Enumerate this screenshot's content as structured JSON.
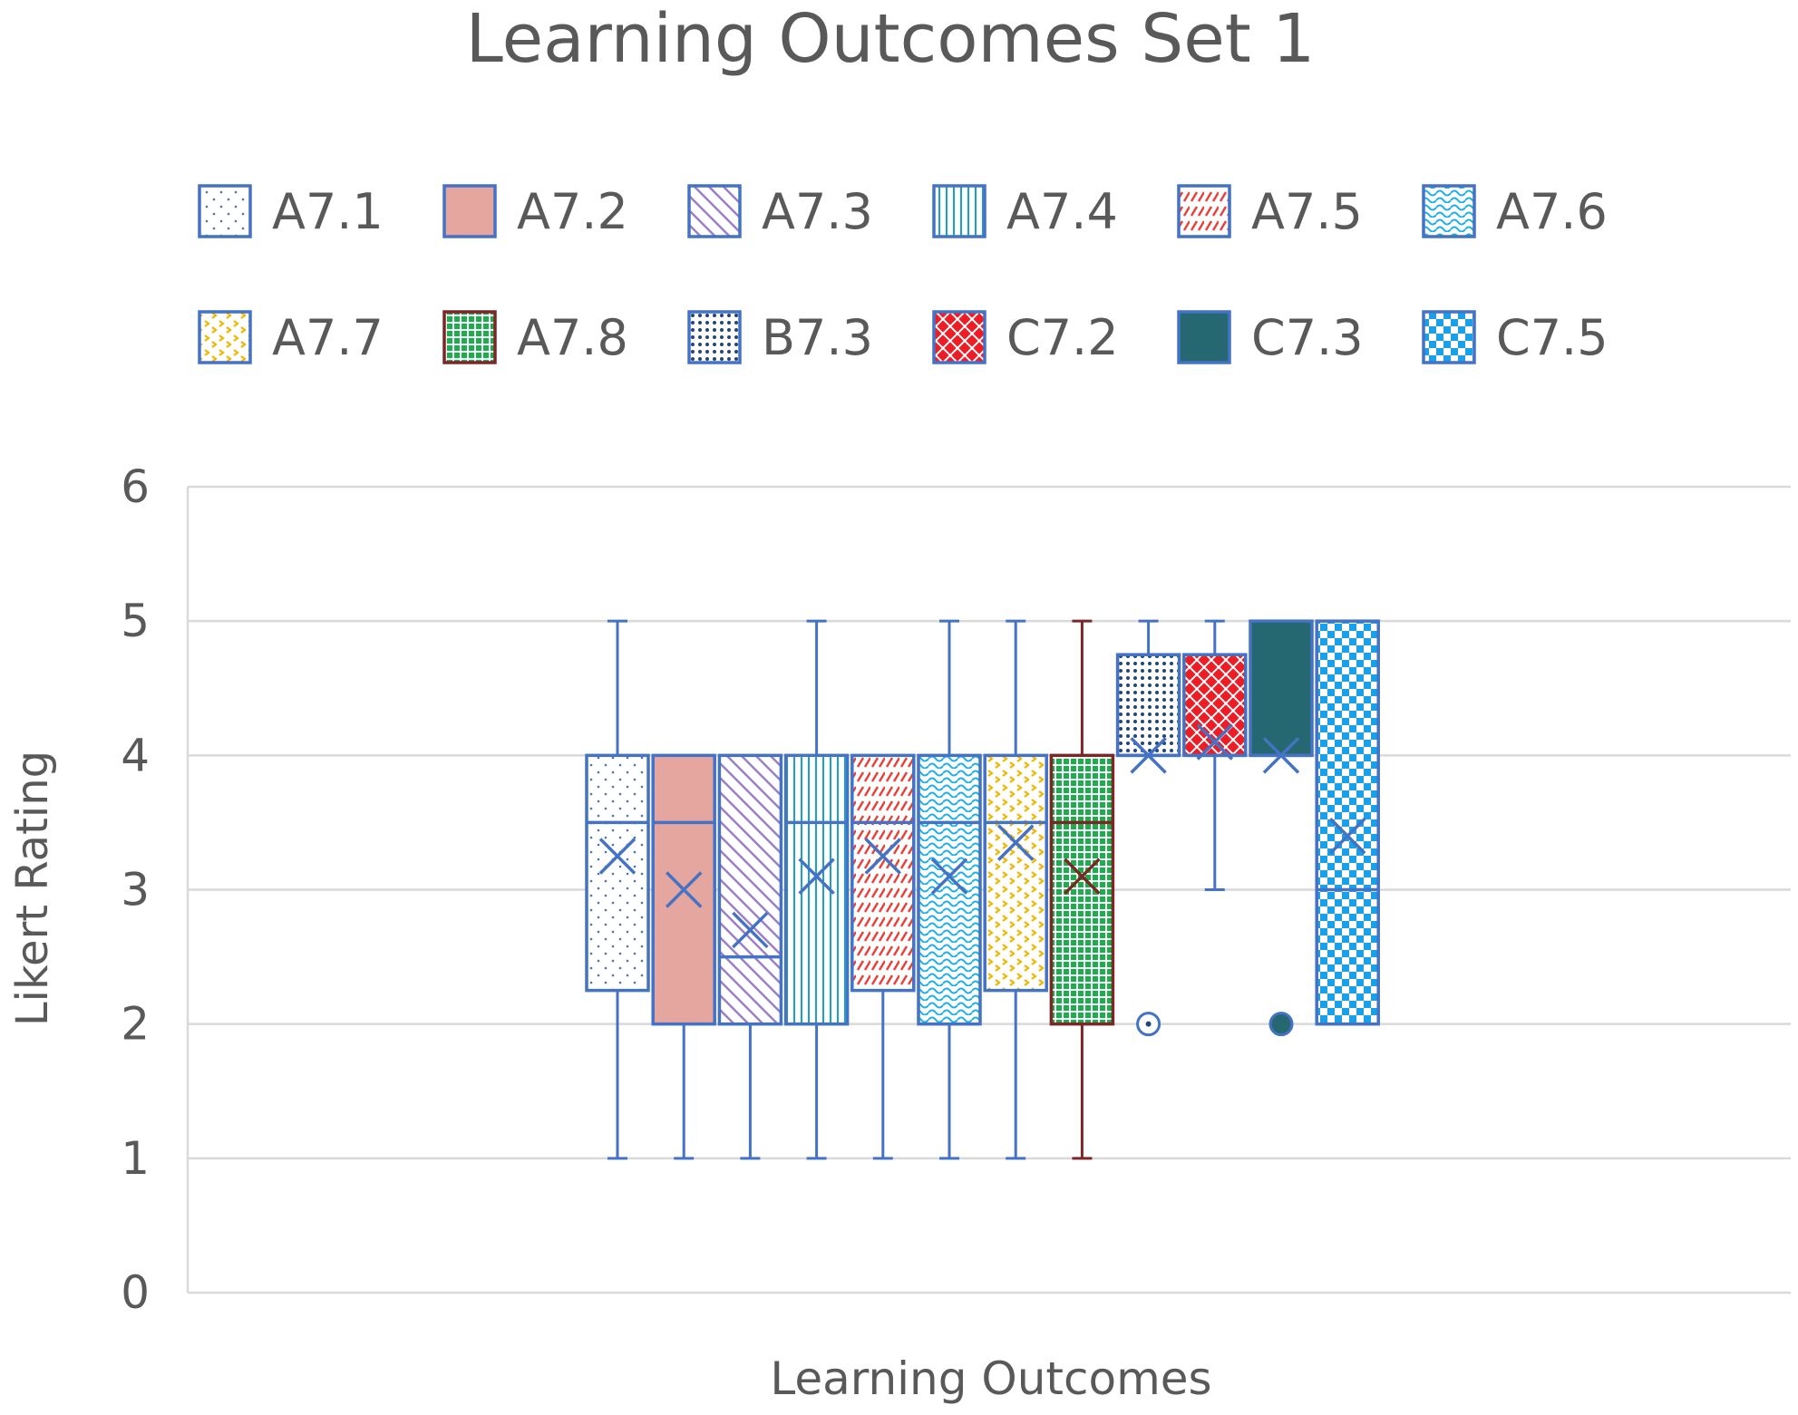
{
  "chart_data": {
    "type": "box",
    "title": "Learning Outcomes Set 1",
    "xlabel": "Learning Outcomes",
    "ylabel": "Likert Rating",
    "ylim": [
      0,
      6
    ],
    "yticks": [
      "0",
      "1",
      "2",
      "3",
      "4",
      "5",
      "6"
    ],
    "grid": true,
    "legend_position": "top",
    "series": [
      {
        "name": "A7.1",
        "min": 1,
        "q1": 2.25,
        "median": 3.5,
        "q3": 4,
        "max": 5,
        "mean": 3.25,
        "outliers": [],
        "pattern": "dots-sparse",
        "fill": "#ffffff",
        "stroke": "#4472c4",
        "mark": "#4472c4"
      },
      {
        "name": "A7.2",
        "min": 1,
        "q1": 2,
        "median": 3.5,
        "q3": 4,
        "max": 4,
        "mean": 3.0,
        "outliers": [],
        "pattern": "solid",
        "fill": "#e6a6a0",
        "stroke": "#4472c4",
        "mark": "#4472c4"
      },
      {
        "name": "A7.3",
        "min": 1,
        "q1": 2,
        "median": 2.5,
        "q3": 4,
        "max": 4,
        "mean": 2.7,
        "outliers": [],
        "pattern": "diagonal",
        "fill": "#ffffff",
        "stroke": "#4472c4",
        "mark": "#9e7fc6"
      },
      {
        "name": "A7.4",
        "min": 1,
        "q1": 2,
        "median": 3.5,
        "q3": 4,
        "max": 5,
        "mean": 3.1,
        "outliers": [],
        "pattern": "vertical",
        "fill": "#ffffff",
        "stroke": "#4472c4",
        "mark": "#1aa0d8"
      },
      {
        "name": "A7.5",
        "min": 1,
        "q1": 2.25,
        "median": 3.5,
        "q3": 4,
        "max": 4,
        "mean": 3.25,
        "outliers": [],
        "pattern": "dashes",
        "fill": "#ffffff",
        "stroke": "#4472c4",
        "mark": "#e8433b"
      },
      {
        "name": "A7.6",
        "min": 1,
        "q1": 2,
        "median": 3.5,
        "q3": 4,
        "max": 5,
        "mean": 3.1,
        "outliers": [],
        "pattern": "wave",
        "fill": "#ffffff",
        "stroke": "#4472c4",
        "mark": "#1ab0e8"
      },
      {
        "name": "A7.7",
        "min": 1,
        "q1": 2.25,
        "median": 3.5,
        "q3": 4,
        "max": 5,
        "mean": 3.35,
        "outliers": [],
        "pattern": "chevron",
        "fill": "#ffffff",
        "stroke": "#4472c4",
        "mark": "#f2b600"
      },
      {
        "name": "A7.8",
        "min": 1,
        "q1": 2,
        "median": 3.5,
        "q3": 4,
        "max": 5,
        "mean": 3.1,
        "outliers": [],
        "pattern": "grid",
        "fill": "#19b04b",
        "stroke": "#7b2727",
        "mark": "#ffffff"
      },
      {
        "name": "B7.3",
        "min": 4,
        "q1": 4,
        "median": 4,
        "q3": 4.75,
        "max": 5,
        "mean": 4.0,
        "outliers": [
          2
        ],
        "pattern": "dots-dense",
        "fill": "#ffffff",
        "stroke": "#4472c4",
        "mark": "#264478"
      },
      {
        "name": "C7.2",
        "min": 3,
        "q1": 4,
        "median": 4,
        "q3": 4.75,
        "max": 5,
        "mean": 4.1,
        "outliers": [],
        "pattern": "crosshatch",
        "fill": "#ee1c25",
        "stroke": "#4472c4",
        "mark": "#ffffff"
      },
      {
        "name": "C7.3",
        "min": 4,
        "q1": 4,
        "median": 4,
        "q3": 5,
        "max": 5,
        "mean": 4.0,
        "outliers": [
          2
        ],
        "pattern": "solid",
        "fill": "#256872",
        "stroke": "#4472c4",
        "mark": "#256872"
      },
      {
        "name": "C7.5",
        "min": 2,
        "q1": 2,
        "median": 3,
        "q3": 5,
        "max": 5,
        "mean": 3.4,
        "outliers": [],
        "pattern": "checker",
        "fill": "#ffffff",
        "stroke": "#4472c4",
        "mark": "#1aa0e8"
      }
    ]
  }
}
